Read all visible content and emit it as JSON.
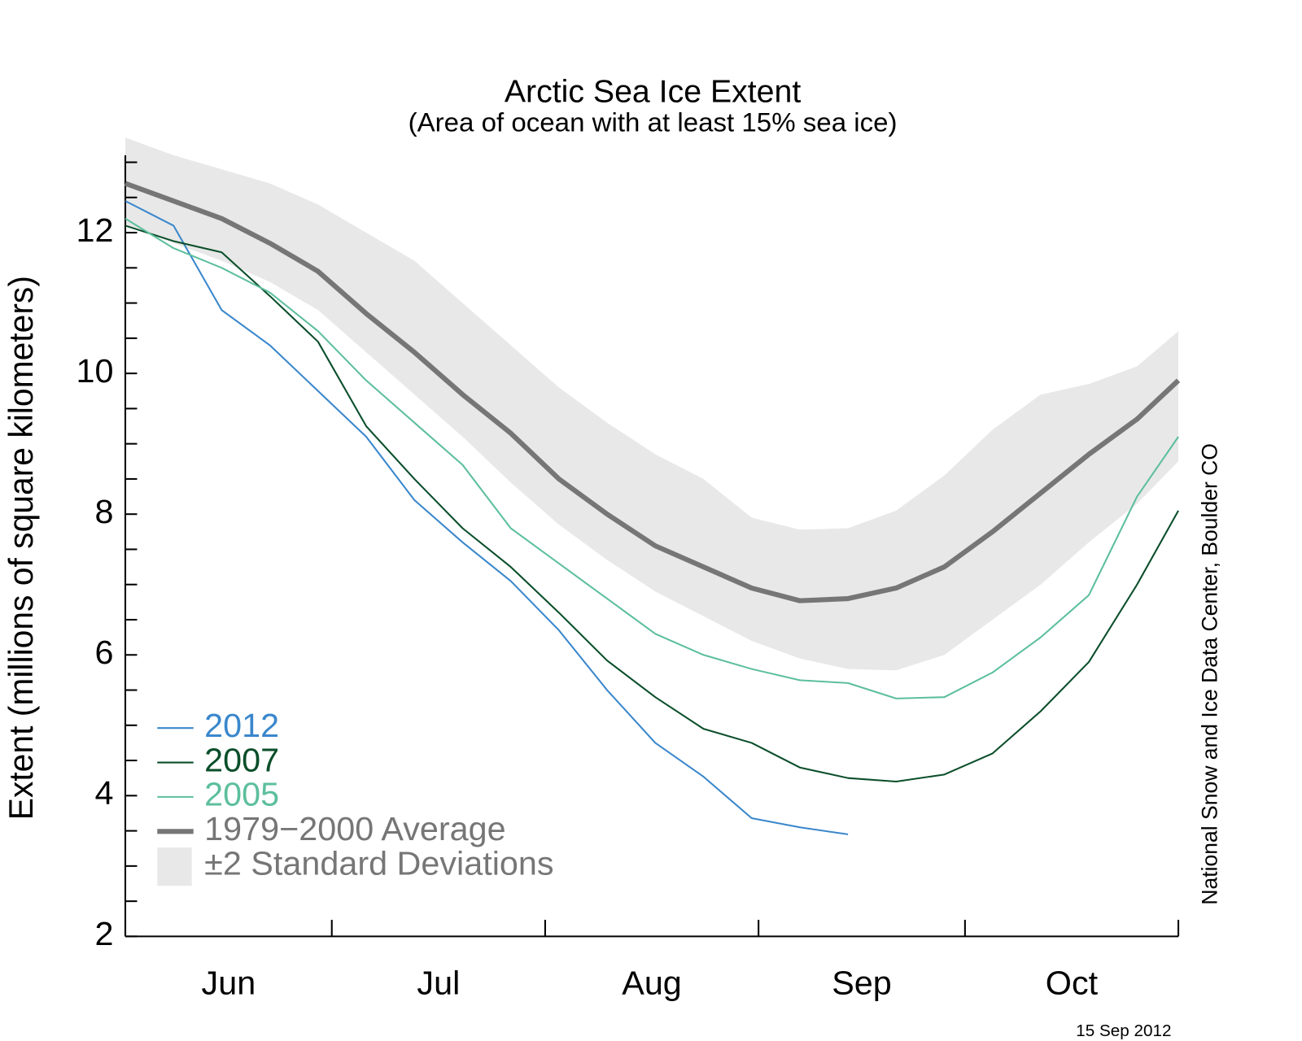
{
  "chart_data": {
    "type": "line",
    "title": "Arctic Sea Ice Extent",
    "subtitle": "(Area of ocean with at least 15% sea ice)",
    "y_label": "Extent (millions of square kilometers)",
    "source": "National Snow and Ice Data Center, Boulder CO",
    "date": "15 Sep 2012",
    "categories": [
      "Jun",
      "Jul",
      "Aug",
      "Sep",
      "Oct"
    ],
    "x": [
      0,
      7,
      14,
      21,
      28,
      35,
      42,
      49,
      56,
      63,
      70,
      77,
      84,
      91,
      98,
      105,
      112,
      119,
      126,
      133,
      140,
      147,
      153
    ],
    "xlim": [
      0,
      153
    ],
    "xticks": [
      0,
      30,
      61,
      92,
      122,
      153
    ],
    "ylim": [
      2,
      13.1
    ],
    "yticks": [
      2,
      4,
      6,
      8,
      10,
      12
    ],
    "yminorticks": [
      2.5,
      3,
      3.5,
      4.5,
      5,
      5.5,
      6.5,
      7,
      7.5,
      8.5,
      9,
      9.5,
      10.5,
      11,
      11.5,
      12.5,
      13
    ],
    "legend": "lower left",
    "band": {
      "name": "±2 Standard Deviations",
      "color": "#e8e8e8",
      "upper": [
        13.35,
        13.1,
        12.9,
        12.7,
        12.4,
        12.0,
        11.6,
        11.0,
        10.4,
        9.8,
        9.3,
        8.85,
        8.5,
        7.95,
        7.78,
        7.8,
        8.05,
        8.55,
        9.2,
        9.7,
        9.85,
        10.1,
        10.6
      ],
      "lower": [
        12.1,
        11.85,
        11.6,
        11.3,
        10.9,
        10.3,
        9.7,
        9.1,
        8.45,
        7.85,
        7.35,
        6.9,
        6.55,
        6.2,
        5.95,
        5.8,
        5.78,
        6.0,
        6.5,
        7.0,
        7.6,
        8.15,
        8.75
      ]
    },
    "series": [
      {
        "name": "2012",
        "color": "#3a87cc",
        "width": 2,
        "values": [
          12.45,
          12.1,
          10.9,
          10.4,
          9.75,
          9.1,
          8.2,
          7.6,
          7.05,
          6.35,
          5.5,
          4.75,
          4.27,
          3.68,
          3.55,
          3.45,
          null,
          null,
          null,
          null,
          null,
          null,
          null
        ]
      },
      {
        "name": "2007",
        "color": "#0a4e2a",
        "width": 2,
        "values": [
          12.1,
          11.88,
          11.72,
          11.1,
          10.45,
          9.25,
          8.5,
          7.8,
          7.25,
          6.6,
          5.92,
          5.4,
          4.95,
          4.75,
          4.4,
          4.25,
          4.2,
          4.3,
          4.6,
          5.2,
          5.9,
          7.0,
          8.05
        ]
      },
      {
        "name": "2005",
        "color": "#5cbf9c",
        "width": 2,
        "values": [
          12.2,
          11.78,
          11.5,
          11.15,
          10.6,
          9.9,
          9.3,
          8.7,
          7.8,
          7.3,
          6.8,
          6.3,
          6.0,
          5.8,
          5.64,
          5.6,
          5.38,
          5.4,
          5.75,
          6.25,
          6.85,
          8.25,
          9.1
        ]
      },
      {
        "name": "1979−2000 Average",
        "color": "#767676",
        "width": 6,
        "values": [
          12.7,
          12.45,
          12.2,
          11.85,
          11.45,
          10.85,
          10.3,
          9.7,
          9.15,
          8.5,
          8.0,
          7.55,
          7.25,
          6.95,
          6.77,
          6.8,
          6.95,
          7.25,
          7.75,
          8.3,
          8.85,
          9.35,
          9.9
        ]
      }
    ]
  }
}
